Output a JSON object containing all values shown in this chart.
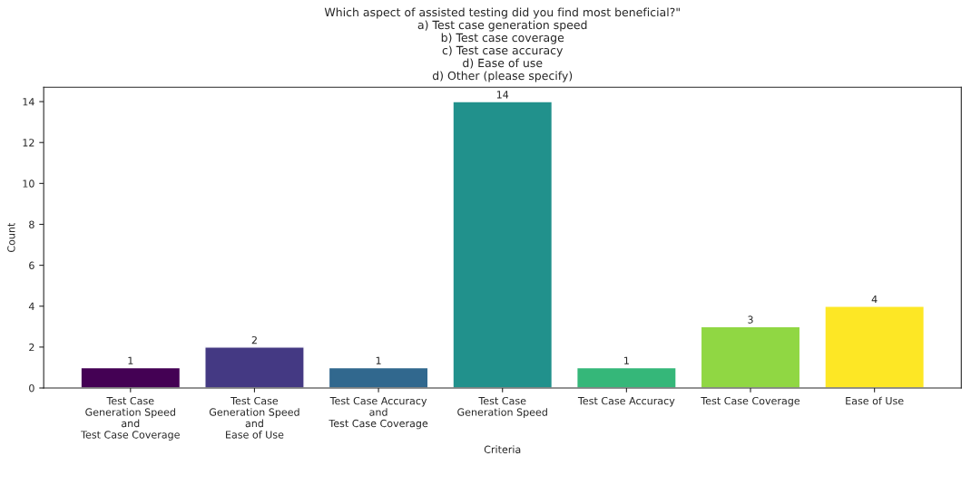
{
  "chart_data": {
    "type": "bar",
    "title": "Which aspect of assisted testing did you find most beneficial?\"\na) Test case generation speed\nb) Test case coverage\nc) Test case accuracy\nd) Ease of use\nd) Other (please specify)",
    "xlabel": "Criteria",
    "ylabel": "Count",
    "categories": [
      "Test Case\nGeneration Speed\nand\nTest Case Coverage",
      "Test Case\nGeneration Speed\nand\nEase of Use",
      "Test Case Accuracy\nand\nTest Case Coverage",
      "Test Case\nGeneration Speed",
      "Test Case Accuracy",
      "Test Case Coverage",
      "Ease of Use"
    ],
    "values": [
      1,
      2,
      1,
      14,
      1,
      3,
      4
    ],
    "colors": [
      "#440154",
      "#443983",
      "#31688e",
      "#21918c",
      "#35b779",
      "#90d743",
      "#fde725"
    ],
    "ylim": [
      0,
      14.7
    ],
    "yticks": [
      0,
      2,
      4,
      6,
      8,
      10,
      12,
      14
    ],
    "data_labels": true,
    "grid": false,
    "legend": false
  }
}
